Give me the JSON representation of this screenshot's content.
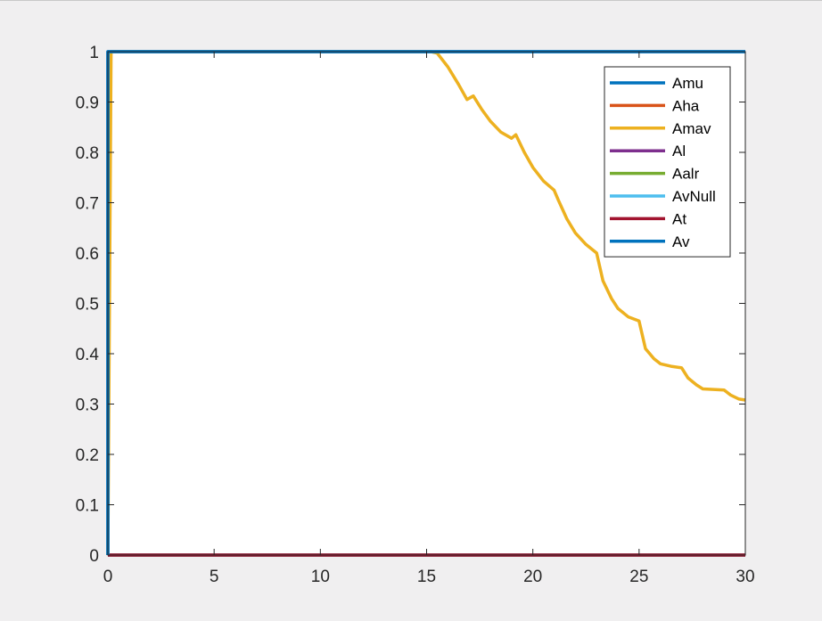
{
  "chart_data": {
    "type": "line",
    "title": "",
    "xlabel": "",
    "ylabel": "",
    "xlim": [
      0,
      30
    ],
    "ylim": [
      0,
      1
    ],
    "x_ticks": [
      0,
      5,
      10,
      15,
      20,
      25,
      30
    ],
    "x_tick_labels": [
      "0",
      "5",
      "10",
      "15",
      "20",
      "25",
      "30"
    ],
    "y_ticks": [
      0,
      0.1,
      0.2,
      0.3,
      0.4,
      0.5,
      0.6,
      0.7,
      0.8,
      0.9,
      1
    ],
    "y_tick_labels": [
      "0",
      "0.1",
      "0.2",
      "0.3",
      "0.4",
      "0.5",
      "0.6",
      "0.7",
      "0.8",
      "0.9",
      "1"
    ],
    "grid": false,
    "legend_position": "top-right",
    "series": [
      {
        "name": "Amu",
        "color": "#0072bd",
        "x": [
          0,
          0,
          30
        ],
        "y": [
          0,
          1,
          1
        ]
      },
      {
        "name": "Aha",
        "color": "#d95319",
        "x": [
          0,
          30
        ],
        "y": [
          0,
          0
        ]
      },
      {
        "name": "Amav",
        "color": "#edb120",
        "x": [
          0,
          0.15,
          0.3,
          15.2,
          15.5,
          16,
          16.5,
          16.9,
          17.2,
          17.6,
          18,
          18.5,
          19,
          19.2,
          19.6,
          20,
          20.5,
          21,
          21.2,
          21.6,
          22,
          22.5,
          23,
          23.3,
          23.7,
          24,
          24.5,
          25,
          25.3,
          25.7,
          26,
          26.5,
          27,
          27.3,
          27.7,
          28,
          28.5,
          29,
          29.3,
          29.7,
          30
        ],
        "y": [
          0,
          1,
          1,
          1,
          0.997,
          0.97,
          0.935,
          0.905,
          0.912,
          0.885,
          0.862,
          0.84,
          0.828,
          0.835,
          0.8,
          0.77,
          0.743,
          0.725,
          0.705,
          0.668,
          0.64,
          0.617,
          0.6,
          0.545,
          0.51,
          0.49,
          0.473,
          0.465,
          0.41,
          0.39,
          0.38,
          0.375,
          0.372,
          0.352,
          0.338,
          0.33,
          0.329,
          0.328,
          0.318,
          0.31,
          0.308
        ]
      },
      {
        "name": "Al",
        "color": "#7e2f8e",
        "x": [
          0,
          30
        ],
        "y": [
          0,
          0
        ]
      },
      {
        "name": "Aalr",
        "color": "#77ac30",
        "x": [
          0,
          30
        ],
        "y": [
          0,
          0
        ]
      },
      {
        "name": "AvNull",
        "color": "#4dbeee",
        "x": [
          0,
          30
        ],
        "y": [
          0,
          0
        ]
      },
      {
        "name": "At",
        "color": "#a2142f",
        "x": [
          0,
          30
        ],
        "y": [
          0,
          0
        ]
      },
      {
        "name": "Av",
        "color": "#0072bd",
        "x": [
          0,
          0,
          30
        ],
        "y": [
          0,
          1,
          1
        ]
      }
    ]
  }
}
